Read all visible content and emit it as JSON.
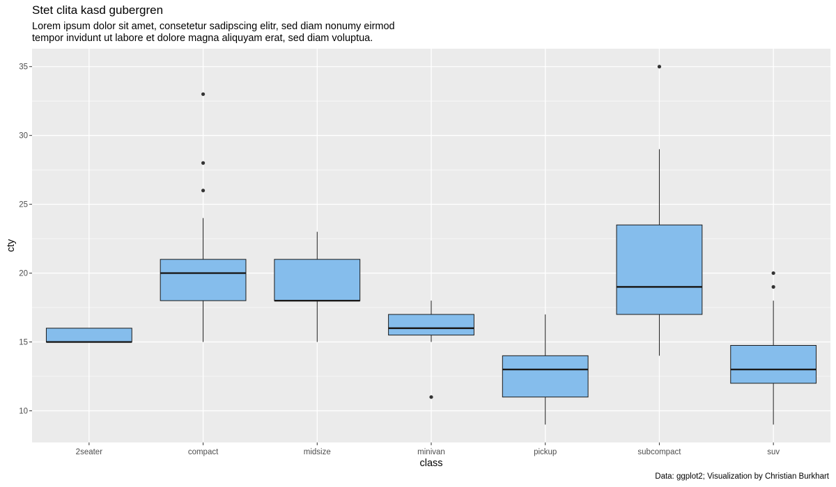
{
  "chart_data": {
    "type": "boxplot",
    "title": "Stet clita kasd gubergren",
    "subtitle": "Lorem ipsum dolor sit amet, consetetur sadipscing elitr, sed diam nonumy eirmod\ntempor invidunt ut labore et dolore magna aliquyam erat, sed diam voluptua.",
    "caption": "Data: ggplot2; Visualization by Christian Burkhart",
    "xlabel": "class",
    "ylabel": "cty",
    "ylim": [
      7.7,
      36.3
    ],
    "yticks": [
      10,
      15,
      20,
      25,
      30,
      35
    ],
    "grid": true,
    "categories": [
      "2seater",
      "compact",
      "midsize",
      "minivan",
      "pickup",
      "subcompact",
      "suv"
    ],
    "boxes": [
      {
        "category": "2seater",
        "min": 15,
        "q1": 15,
        "median": 15,
        "q3": 16,
        "max": 16,
        "outliers": []
      },
      {
        "category": "compact",
        "min": 15,
        "q1": 18,
        "median": 20,
        "q3": 21,
        "max": 24,
        "outliers": [
          26,
          28,
          33
        ]
      },
      {
        "category": "midsize",
        "min": 15,
        "q1": 18,
        "median": 18,
        "q3": 21,
        "max": 23,
        "outliers": []
      },
      {
        "category": "minivan",
        "min": 15,
        "q1": 15.5,
        "median": 16,
        "q3": 17,
        "max": 18,
        "outliers": [
          11
        ]
      },
      {
        "category": "pickup",
        "min": 9,
        "q1": 11,
        "median": 13,
        "q3": 14,
        "max": 17,
        "outliers": []
      },
      {
        "category": "subcompact",
        "min": 14,
        "q1": 17,
        "median": 19,
        "q3": 23.5,
        "max": 29,
        "outliers": [
          35
        ]
      },
      {
        "category": "suv",
        "min": 9,
        "q1": 12,
        "median": 13,
        "q3": 14.75,
        "max": 18,
        "outliers": [
          19,
          20
        ]
      }
    ],
    "colors": {
      "box_fill": "#85bdec",
      "box_stroke": "#1a1a1a",
      "panel": "#ebebeb",
      "grid": "#ffffff",
      "outlier": "#333333"
    }
  }
}
